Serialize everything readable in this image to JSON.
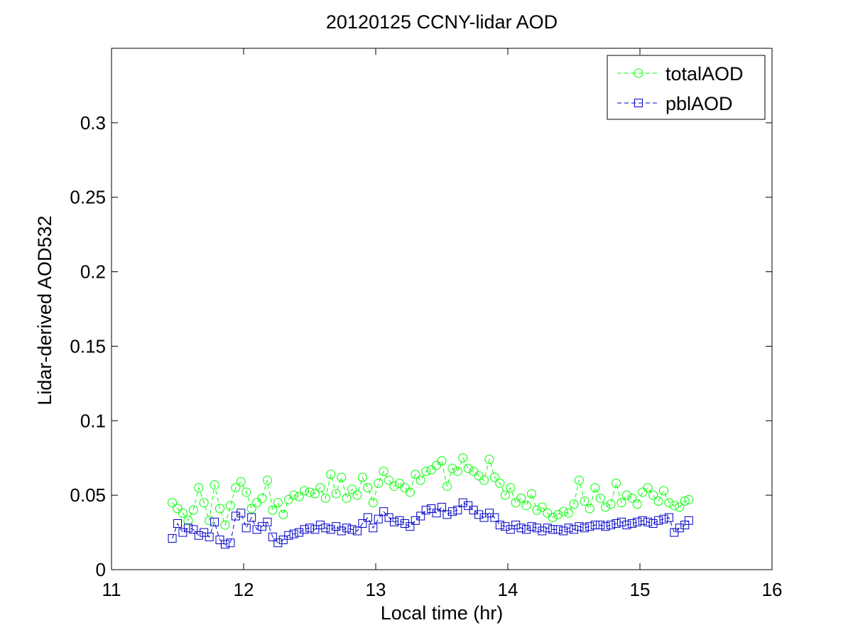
{
  "chart_data": {
    "type": "line",
    "title": "20120125 CCNY-lidar AOD",
    "xlabel": "Local time (hr)",
    "ylabel": "Lidar-derived AOD532",
    "xlim": [
      11,
      16
    ],
    "ylim": [
      0,
      0.35
    ],
    "xticks": [
      11,
      12,
      13,
      14,
      15,
      16
    ],
    "xtick_labels": [
      "11",
      "12",
      "13",
      "14",
      "15",
      "16"
    ],
    "yticks": [
      0,
      0.05,
      0.1,
      0.15,
      0.2,
      0.25,
      0.3
    ],
    "ytick_labels": [
      "0",
      "0.05",
      "0.1",
      "0.15",
      "0.2",
      "0.25",
      "0.3"
    ],
    "grid": false,
    "legend_position": "top-right",
    "series": [
      {
        "name": "totalAOD",
        "color": "#00ff00",
        "marker": "circle",
        "line_style": "dashed",
        "x": [
          11.46,
          11.5,
          11.54,
          11.58,
          11.62,
          11.66,
          11.7,
          11.74,
          11.78,
          11.82,
          11.86,
          11.9,
          11.94,
          11.98,
          12.02,
          12.06,
          12.1,
          12.14,
          12.18,
          12.22,
          12.26,
          12.3,
          12.34,
          12.38,
          12.42,
          12.46,
          12.5,
          12.54,
          12.58,
          12.62,
          12.66,
          12.7,
          12.74,
          12.78,
          12.82,
          12.86,
          12.9,
          12.94,
          12.98,
          13.02,
          13.06,
          13.1,
          13.14,
          13.18,
          13.22,
          13.26,
          13.3,
          13.34,
          13.38,
          13.42,
          13.46,
          13.5,
          13.54,
          13.58,
          13.62,
          13.66,
          13.7,
          13.74,
          13.78,
          13.82,
          13.86,
          13.9,
          13.94,
          13.98,
          14.02,
          14.06,
          14.1,
          14.14,
          14.18,
          14.22,
          14.26,
          14.3,
          14.34,
          14.38,
          14.42,
          14.46,
          14.5,
          14.54,
          14.58,
          14.62,
          14.66,
          14.7,
          14.74,
          14.78,
          14.82,
          14.86,
          14.9,
          14.94,
          14.98,
          15.02,
          15.06,
          15.1,
          15.14,
          15.18,
          15.22,
          15.26,
          15.3,
          15.34,
          15.37
        ],
        "y": [
          0.045,
          0.041,
          0.038,
          0.033,
          0.04,
          0.055,
          0.045,
          0.033,
          0.057,
          0.041,
          0.03,
          0.043,
          0.055,
          0.059,
          0.052,
          0.041,
          0.045,
          0.048,
          0.06,
          0.04,
          0.045,
          0.037,
          0.047,
          0.05,
          0.049,
          0.053,
          0.052,
          0.051,
          0.055,
          0.048,
          0.064,
          0.051,
          0.062,
          0.048,
          0.054,
          0.05,
          0.062,
          0.055,
          0.045,
          0.058,
          0.066,
          0.06,
          0.056,
          0.058,
          0.055,
          0.052,
          0.064,
          0.06,
          0.066,
          0.067,
          0.07,
          0.073,
          0.056,
          0.068,
          0.066,
          0.075,
          0.068,
          0.066,
          0.063,
          0.06,
          0.074,
          0.062,
          0.058,
          0.05,
          0.055,
          0.045,
          0.048,
          0.043,
          0.051,
          0.04,
          0.042,
          0.038,
          0.035,
          0.037,
          0.039,
          0.038,
          0.044,
          0.06,
          0.046,
          0.041,
          0.055,
          0.048,
          0.042,
          0.044,
          0.058,
          0.045,
          0.05,
          0.048,
          0.044,
          0.052,
          0.055,
          0.05,
          0.046,
          0.053,
          0.045,
          0.043,
          0.042,
          0.046,
          0.047
        ]
      },
      {
        "name": "pblAOD",
        "color": "#0000c8",
        "marker": "square",
        "line_style": "dashed",
        "x": [
          11.46,
          11.5,
          11.54,
          11.58,
          11.62,
          11.66,
          11.7,
          11.74,
          11.78,
          11.82,
          11.86,
          11.9,
          11.94,
          11.98,
          12.02,
          12.06,
          12.1,
          12.14,
          12.18,
          12.22,
          12.26,
          12.3,
          12.34,
          12.38,
          12.42,
          12.46,
          12.5,
          12.54,
          12.58,
          12.62,
          12.66,
          12.7,
          12.74,
          12.78,
          12.82,
          12.86,
          12.9,
          12.94,
          12.98,
          13.02,
          13.06,
          13.1,
          13.14,
          13.18,
          13.22,
          13.26,
          13.3,
          13.34,
          13.38,
          13.42,
          13.46,
          13.5,
          13.54,
          13.58,
          13.62,
          13.66,
          13.7,
          13.74,
          13.78,
          13.82,
          13.86,
          13.9,
          13.94,
          13.98,
          14.02,
          14.06,
          14.1,
          14.14,
          14.18,
          14.22,
          14.26,
          14.3,
          14.34,
          14.38,
          14.42,
          14.46,
          14.5,
          14.54,
          14.58,
          14.62,
          14.66,
          14.7,
          14.74,
          14.78,
          14.82,
          14.86,
          14.9,
          14.94,
          14.98,
          15.02,
          15.06,
          15.1,
          15.14,
          15.18,
          15.22,
          15.26,
          15.3,
          15.34,
          15.37
        ],
        "y": [
          0.021,
          0.031,
          0.025,
          0.028,
          0.027,
          0.023,
          0.025,
          0.022,
          0.032,
          0.02,
          0.017,
          0.018,
          0.036,
          0.038,
          0.028,
          0.035,
          0.027,
          0.029,
          0.032,
          0.022,
          0.018,
          0.02,
          0.023,
          0.024,
          0.025,
          0.027,
          0.028,
          0.027,
          0.03,
          0.028,
          0.027,
          0.029,
          0.026,
          0.028,
          0.027,
          0.026,
          0.031,
          0.035,
          0.028,
          0.034,
          0.039,
          0.035,
          0.032,
          0.033,
          0.031,
          0.029,
          0.033,
          0.036,
          0.04,
          0.041,
          0.038,
          0.042,
          0.037,
          0.039,
          0.04,
          0.045,
          0.043,
          0.04,
          0.037,
          0.035,
          0.038,
          0.035,
          0.03,
          0.029,
          0.027,
          0.03,
          0.028,
          0.027,
          0.029,
          0.028,
          0.026,
          0.028,
          0.027,
          0.027,
          0.026,
          0.028,
          0.027,
          0.029,
          0.028,
          0.029,
          0.03,
          0.03,
          0.029,
          0.03,
          0.031,
          0.032,
          0.03,
          0.031,
          0.032,
          0.033,
          0.032,
          0.031,
          0.033,
          0.034,
          0.035,
          0.025,
          0.028,
          0.03,
          0.033
        ]
      }
    ]
  }
}
